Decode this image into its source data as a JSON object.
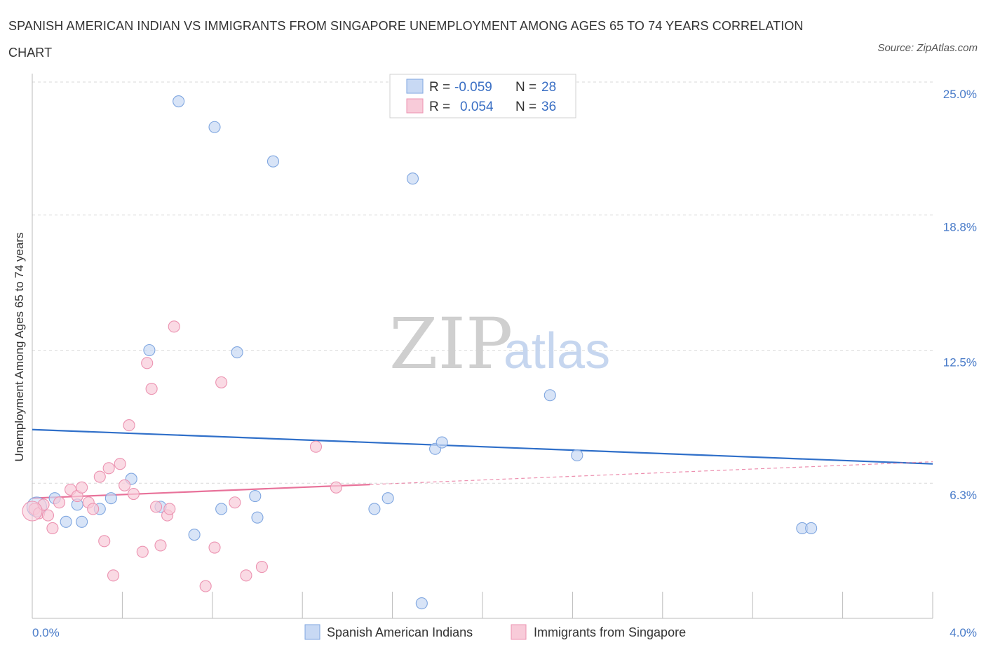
{
  "title": "SPANISH AMERICAN INDIAN VS IMMIGRANTS FROM SINGAPORE UNEMPLOYMENT AMONG AGES 65 TO 74 YEARS CORRELATION CHART",
  "source": "Source: ZipAtlas.com",
  "colors": {
    "blue_fill": "#c8d9f4",
    "blue_stroke": "#7fa6e0",
    "blue_line": "#2f6fc9",
    "pink_fill": "#f8cbd9",
    "pink_stroke": "#ec93b1",
    "pink_line": "#e8729a",
    "axis_text": "#4a7cc9",
    "grid": "#d9d9d9"
  },
  "stats_box": {
    "rows": [
      {
        "r_label": "R =",
        "r_value": "-0.059",
        "n_label": "N =",
        "n_value": "28",
        "series": "blue"
      },
      {
        "r_label": "R =",
        "r_value": "0.054",
        "n_label": "N =",
        "n_value": "36",
        "series": "pink"
      }
    ]
  },
  "watermark": {
    "zip": "ZIP",
    "atlas": "atlas"
  },
  "chart_data": {
    "type": "scatter",
    "title": "SPANISH AMERICAN INDIAN VS IMMIGRANTS FROM SINGAPORE UNEMPLOYMENT AMONG AGES 65 TO 74 YEARS CORRELATION CHART",
    "xlabel": "",
    "ylabel": "Unemployment Among Ages 65 to 74 years",
    "xlim": [
      0.0,
      4.0
    ],
    "ylim": [
      0.0,
      25.0
    ],
    "y_ticks": [
      {
        "value": 6.3,
        "label": "6.3%"
      },
      {
        "value": 12.5,
        "label": "12.5%"
      },
      {
        "value": 18.8,
        "label": "18.8%"
      },
      {
        "value": 25.0,
        "label": "25.0%"
      }
    ],
    "x_tick_labels": {
      "min": "0.0%",
      "max": "4.0%"
    },
    "grid": true,
    "legend_position": "bottom-center",
    "series": [
      {
        "name": "Spanish American Indians",
        "color": "blue",
        "points": [
          {
            "x": 0.02,
            "y": 5.2
          },
          {
            "x": 0.1,
            "y": 5.6
          },
          {
            "x": 0.15,
            "y": 4.5
          },
          {
            "x": 0.2,
            "y": 5.3
          },
          {
            "x": 0.22,
            "y": 4.5
          },
          {
            "x": 0.3,
            "y": 5.1
          },
          {
            "x": 0.35,
            "y": 5.6
          },
          {
            "x": 0.44,
            "y": 6.5
          },
          {
            "x": 0.52,
            "y": 12.5
          },
          {
            "x": 0.57,
            "y": 5.2
          },
          {
            "x": 0.65,
            "y": 24.1
          },
          {
            "x": 0.72,
            "y": 3.9
          },
          {
            "x": 0.81,
            "y": 22.9
          },
          {
            "x": 0.84,
            "y": 5.1
          },
          {
            "x": 0.91,
            "y": 12.4
          },
          {
            "x": 0.99,
            "y": 5.7
          },
          {
            "x": 1.0,
            "y": 4.7
          },
          {
            "x": 1.07,
            "y": 21.3
          },
          {
            "x": 1.52,
            "y": 5.1
          },
          {
            "x": 1.58,
            "y": 5.6
          },
          {
            "x": 1.69,
            "y": 20.5
          },
          {
            "x": 1.73,
            "y": 0.7
          },
          {
            "x": 1.79,
            "y": 7.9
          },
          {
            "x": 1.82,
            "y": 8.2
          },
          {
            "x": 2.3,
            "y": 10.4
          },
          {
            "x": 2.42,
            "y": 7.6
          },
          {
            "x": 3.42,
            "y": 4.2
          },
          {
            "x": 3.46,
            "y": 4.2
          }
        ],
        "trend": {
          "x": [
            0.0,
            4.0
          ],
          "y": [
            8.8,
            7.2
          ],
          "style": "solid"
        }
      },
      {
        "name": "Immigrants from Singapore",
        "color": "pink",
        "points": [
          {
            "x": 0.01,
            "y": 5.1
          },
          {
            "x": 0.03,
            "y": 4.9
          },
          {
            "x": 0.05,
            "y": 5.3
          },
          {
            "x": 0.07,
            "y": 4.8
          },
          {
            "x": 0.09,
            "y": 4.2
          },
          {
            "x": 0.12,
            "y": 5.4
          },
          {
            "x": 0.17,
            "y": 6.0
          },
          {
            "x": 0.2,
            "y": 5.7
          },
          {
            "x": 0.22,
            "y": 6.1
          },
          {
            "x": 0.25,
            "y": 5.4
          },
          {
            "x": 0.27,
            "y": 5.1
          },
          {
            "x": 0.3,
            "y": 6.6
          },
          {
            "x": 0.32,
            "y": 3.6
          },
          {
            "x": 0.34,
            "y": 7.0
          },
          {
            "x": 0.36,
            "y": 2.0
          },
          {
            "x": 0.39,
            "y": 7.2
          },
          {
            "x": 0.41,
            "y": 6.2
          },
          {
            "x": 0.43,
            "y": 9.0
          },
          {
            "x": 0.45,
            "y": 5.8
          },
          {
            "x": 0.49,
            "y": 3.1
          },
          {
            "x": 0.51,
            "y": 11.9
          },
          {
            "x": 0.53,
            "y": 10.7
          },
          {
            "x": 0.55,
            "y": 5.2
          },
          {
            "x": 0.57,
            "y": 3.4
          },
          {
            "x": 0.6,
            "y": 4.8
          },
          {
            "x": 0.61,
            "y": 5.1
          },
          {
            "x": 0.63,
            "y": 13.6
          },
          {
            "x": 0.77,
            "y": 1.5
          },
          {
            "x": 0.81,
            "y": 3.3
          },
          {
            "x": 0.84,
            "y": 11.0
          },
          {
            "x": 0.9,
            "y": 5.4
          },
          {
            "x": 0.95,
            "y": 2.0
          },
          {
            "x": 1.02,
            "y": 2.4
          },
          {
            "x": 1.26,
            "y": 8.0
          },
          {
            "x": 1.35,
            "y": 6.1
          },
          {
            "x": 0.0,
            "y": 5.0
          }
        ],
        "trend": {
          "x": [
            0.0,
            4.0
          ],
          "y": [
            5.6,
            7.3
          ],
          "solid_until_x": 1.5
        }
      }
    ]
  }
}
